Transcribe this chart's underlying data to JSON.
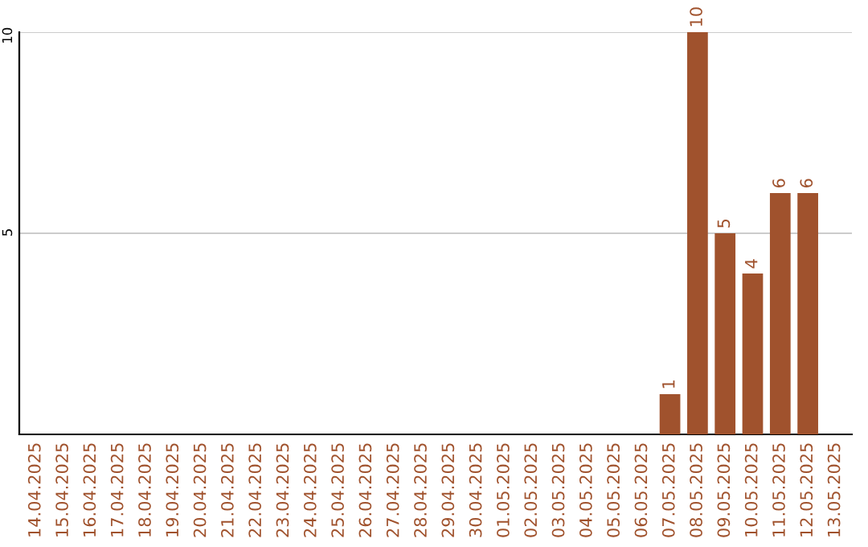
{
  "chart_data": {
    "type": "bar",
    "categories": [
      "14.04.2025",
      "15.04.2025",
      "16.04.2025",
      "17.04.2025",
      "18.04.2025",
      "19.04.2025",
      "20.04.2025",
      "21.04.2025",
      "22.04.2025",
      "23.04.2025",
      "24.04.2025",
      "25.04.2025",
      "26.04.2025",
      "27.04.2025",
      "28.04.2025",
      "29.04.2025",
      "30.04.2025",
      "01.05.2025",
      "02.05.2025",
      "03.05.2025",
      "04.05.2025",
      "05.05.2025",
      "06.05.2025",
      "07.05.2025",
      "08.05.2025",
      "09.05.2025",
      "10.05.2025",
      "11.05.2025",
      "12.05.2025",
      "13.05.2025"
    ],
    "values": [
      0,
      0,
      0,
      0,
      0,
      0,
      0,
      0,
      0,
      0,
      0,
      0,
      0,
      0,
      0,
      0,
      0,
      0,
      0,
      0,
      0,
      0,
      0,
      1,
      10,
      5,
      4,
      6,
      6,
      0
    ],
    "value_labels": [
      null,
      null,
      null,
      null,
      null,
      null,
      null,
      null,
      null,
      null,
      null,
      null,
      null,
      null,
      null,
      null,
      null,
      null,
      null,
      null,
      null,
      null,
      null,
      "1",
      "10",
      "5",
      "4",
      "6",
      "6",
      null
    ],
    "color": "#a0522d",
    "ylim": [
      0,
      10
    ],
    "yticks": [
      5,
      10
    ],
    "grid": "y"
  }
}
